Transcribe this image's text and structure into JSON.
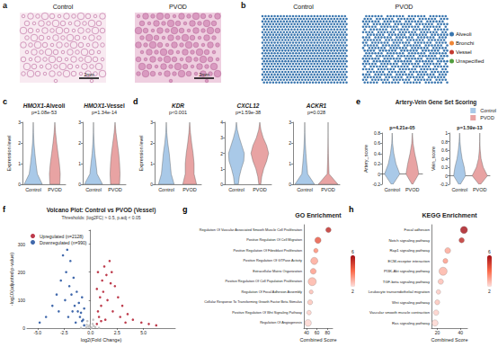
{
  "chart_data": [
    {
      "panel": "a",
      "type": "image",
      "images": [
        {
          "title": "Control",
          "scale_bar": "2mm"
        },
        {
          "title": "PVOD",
          "scale_bar": "2mm"
        }
      ]
    },
    {
      "panel": "b",
      "type": "spatial_map",
      "maps": [
        {
          "title": "Control"
        },
        {
          "title": "PVOD"
        }
      ],
      "legend": "right",
      "series": [
        {
          "name": "Alveoli",
          "color": "#3a76af"
        },
        {
          "name": "Bronchi",
          "color": "#ef8636"
        },
        {
          "name": "Vessel",
          "color": "#c43a31"
        },
        {
          "name": "Unspecified",
          "color": "#529e3e"
        }
      ]
    },
    {
      "panel": "c",
      "type": "violin",
      "grid": false,
      "categories": [
        "Control",
        "PVOD"
      ],
      "subplots": [
        {
          "title": "HMOX1-Alveoli",
          "annotation": "p=1.08e-53",
          "ylabel": "Expression level",
          "ylim": [
            0,
            3
          ],
          "yticks": [
            0,
            1,
            2,
            3
          ],
          "y": [
            0,
            0.5,
            1,
            1.5,
            2,
            2.5,
            3
          ],
          "series": [
            {
              "name": "Control",
              "color": "#a9c9e8",
              "density": [
                1,
                0.45,
                0.3,
                0.18,
                0.08,
                0.03,
                0
              ]
            },
            {
              "name": "PVOD",
              "color": "#e8a3a3",
              "density": [
                0.55,
                0.6,
                0.5,
                0.35,
                0.2,
                0.08,
                0
              ]
            }
          ]
        },
        {
          "title": "HMOX1-Vessel",
          "annotation": "p=1.34e-14",
          "ylim": [
            0,
            3
          ],
          "yticks": [
            0,
            1,
            2,
            3
          ],
          "y": [
            0,
            0.5,
            1,
            1.5,
            2,
            2.5,
            3
          ],
          "series": [
            {
              "name": "Control",
              "color": "#a9c9e8",
              "density": [
                1,
                0.4,
                0.28,
                0.15,
                0.07,
                0.02,
                0
              ]
            },
            {
              "name": "PVOD",
              "color": "#e8a3a3",
              "density": [
                0.5,
                0.55,
                0.5,
                0.4,
                0.25,
                0.1,
                0
              ]
            }
          ]
        }
      ]
    },
    {
      "panel": "d",
      "type": "violin",
      "grid": false,
      "categories": [
        "Control",
        "PVOD"
      ],
      "subplots": [
        {
          "title": "KDR",
          "annotation": "p<0.001",
          "ylabel": "Expression level",
          "ylim": [
            0,
            3
          ],
          "yticks": [
            0,
            1,
            2,
            3
          ],
          "y": [
            0,
            0.5,
            1,
            1.5,
            2,
            2.5,
            3
          ],
          "series": [
            {
              "name": "Control",
              "color": "#a9c9e8",
              "density": [
                0.8,
                0.5,
                0.4,
                0.3,
                0.15,
                0.05,
                0
              ]
            },
            {
              "name": "PVOD",
              "color": "#e8a3a3",
              "density": [
                0.7,
                0.45,
                0.45,
                0.35,
                0.2,
                0.08,
                0
              ]
            }
          ]
        },
        {
          "title": "CXCL12",
          "annotation": "p=1.59e-38",
          "ylim": [
            0,
            4
          ],
          "yticks": [
            0,
            1,
            2,
            3,
            4
          ],
          "y": [
            0,
            0.5,
            1,
            1.5,
            2,
            2.5,
            3,
            3.5,
            4
          ],
          "series": [
            {
              "name": "Control",
              "color": "#a9c9e8",
              "density": [
                0.2,
                0.3,
                0.5,
                0.75,
                0.8,
                0.55,
                0.3,
                0.1,
                0
              ]
            },
            {
              "name": "PVOD",
              "color": "#e8a3a3",
              "density": [
                0.1,
                0.2,
                0.4,
                0.7,
                0.9,
                0.7,
                0.35,
                0.12,
                0
              ]
            }
          ]
        },
        {
          "title": "ACKR1",
          "annotation": "p=0.028",
          "ylim": [
            0,
            3
          ],
          "yticks": [
            0,
            1,
            2,
            3
          ],
          "y": [
            0,
            0.5,
            1,
            1.5,
            2,
            2.5,
            3
          ],
          "series": [
            {
              "name": "Control",
              "color": "#a9c9e8",
              "density": [
                1,
                0.3,
                0.2,
                0.12,
                0.06,
                0.02,
                0
              ]
            },
            {
              "name": "PVOD",
              "color": "#e8a3a3",
              "density": [
                1,
                0.1,
                0.06,
                0.03,
                0.01,
                0,
                0
              ]
            }
          ]
        }
      ]
    },
    {
      "panel": "e",
      "type": "violin",
      "grid": false,
      "title": "Artery-Vein Gene Set Scoring",
      "legend": "upper right",
      "categories": [
        "Control",
        "PVOD"
      ],
      "subplots": [
        {
          "annotation": "p=4.21e-05",
          "ylabel": "Artery_score",
          "ylim": [
            -0.2,
            0.8
          ],
          "yticks": [
            -0.2,
            0,
            0.2,
            0.4,
            0.6,
            0.8
          ],
          "y": [
            -0.2,
            0,
            0.2,
            0.4,
            0.6,
            0.8
          ],
          "series": [
            {
              "name": "Control",
              "color": "#a9c9e8",
              "density": [
                0.1,
                0.9,
                0.45,
                0.2,
                0.05,
                0
              ]
            },
            {
              "name": "PVOD",
              "color": "#e8a3a3",
              "density": [
                0.05,
                0.75,
                0.55,
                0.28,
                0.08,
                0
              ]
            }
          ]
        },
        {
          "annotation": "p=1.59e-13",
          "ylabel": "Vein_score",
          "ylim": [
            -0.2,
            1.0
          ],
          "yticks": [
            -0.2,
            0,
            0.2,
            0.4,
            0.6,
            0.8,
            1.0
          ],
          "y": [
            -0.2,
            0,
            0.2,
            0.4,
            0.6,
            0.8,
            1.0
          ],
          "series": [
            {
              "name": "Control",
              "color": "#a9c9e8",
              "density": [
                0.1,
                0.7,
                0.55,
                0.3,
                0.15,
                0.05,
                0
              ]
            },
            {
              "name": "PVOD",
              "color": "#e8a3a3",
              "density": [
                0.1,
                0.9,
                0.4,
                0.15,
                0.05,
                0.01,
                0
              ]
            }
          ]
        }
      ]
    },
    {
      "panel": "f",
      "type": "scatter",
      "grid": false,
      "title": "Volcano Plot: Control vs PVOD (Vessel)",
      "subtitle": "Thresholds: |log2FC| > 0.5, p.adj < 0.05",
      "xlabel": "log2(Fold Change)",
      "ylabel": "-log10(adjusted p-value)",
      "xlim": [
        -6,
        8
      ],
      "xticks": [
        {
          "value": -5,
          "label": "-5.0"
        },
        -2.5,
        {
          "value": 0,
          "label": "0.0"
        },
        2.5,
        {
          "value": 5,
          "label": "5.0"
        }
      ],
      "ylim": [
        0,
        350
      ],
      "yticks": [
        0,
        100,
        200,
        300
      ],
      "legend": "upper left",
      "series": [
        {
          "name": "Upregulated (n=2128)",
          "color": "#b2182b",
          "values": [
            [
              0.6,
              15
            ],
            [
              0.8,
              40
            ],
            [
              1.0,
              80
            ],
            [
              1.2,
              130
            ],
            [
              1.5,
              190
            ],
            [
              1.8,
              240
            ],
            [
              1.3,
              220
            ],
            [
              1.1,
              170
            ],
            [
              0.9,
              110
            ],
            [
              0.7,
              60
            ],
            [
              2.0,
              200
            ],
            [
              2.3,
              150
            ],
            [
              2.6,
              110
            ],
            [
              3.0,
              80
            ],
            [
              3.5,
              50
            ],
            [
              4.0,
              30
            ],
            [
              4.8,
              20
            ],
            [
              5.5,
              15
            ],
            [
              6.2,
              10
            ],
            [
              1.6,
              100
            ],
            [
              2.1,
              60
            ],
            [
              0.6,
              140
            ],
            [
              1.4,
              30
            ],
            [
              2.8,
              40
            ],
            [
              3.3,
              20
            ],
            [
              1.9,
              160
            ],
            [
              1.0,
              25
            ],
            [
              0.7,
              200
            ]
          ]
        },
        {
          "name": "Downregulated (n=990)",
          "color": "#1f4e9c",
          "values": [
            [
              -0.6,
              10
            ],
            [
              -0.8,
              25
            ],
            [
              -1.0,
              40
            ],
            [
              -1.2,
              60
            ],
            [
              -1.5,
              80
            ],
            [
              -1.8,
              120
            ],
            [
              -2.0,
              150
            ],
            [
              -2.3,
              200
            ],
            [
              -2.6,
              260
            ],
            [
              -2.2,
              280
            ],
            [
              -1.9,
              240
            ],
            [
              -1.6,
              180
            ],
            [
              -1.3,
              130
            ],
            [
              -1.1,
              90
            ],
            [
              -0.9,
              55
            ],
            [
              -0.7,
              30
            ],
            [
              -2.8,
              170
            ],
            [
              -3.2,
              120
            ],
            [
              -3.6,
              80
            ],
            [
              -4.2,
              40
            ],
            [
              -4.8,
              20
            ],
            [
              -2.4,
              100
            ],
            [
              -1.7,
              60
            ],
            [
              -0.6,
              70
            ],
            [
              -3.0,
              60
            ],
            [
              -1.4,
              20
            ],
            [
              -0.8,
              110
            ],
            [
              -2.1,
              40
            ]
          ]
        },
        {
          "color": "#bbbbbb",
          "values": [
            [
              0.1,
              2
            ],
            [
              -0.2,
              5
            ],
            [
              0.3,
              8
            ],
            [
              -0.4,
              3
            ],
            [
              0.2,
              15
            ],
            [
              -0.1,
              10
            ],
            [
              0.45,
              4
            ],
            [
              -0.35,
              12
            ],
            [
              0,
              1
            ],
            [
              0.25,
              30
            ],
            [
              -0.3,
              25
            ],
            [
              0.8,
              1
            ],
            [
              -0.9,
              1
            ]
          ]
        }
      ]
    },
    {
      "panel": "g",
      "type": "dot",
      "grid": false,
      "title": "GO Enrichment",
      "xlabel": "Combined Score",
      "categories": [
        "Regulation Of Vascular Associated Smooth Muscle Cell Proliferation",
        "Positive Regulation Of Cell Migration",
        "Positive Regulation Of Fibroblast Proliferation",
        "Positive Regulation Of GTPase Activity",
        "Extracellular Matrix Organization",
        "Positive Regulation Of Cell Population Proliferation",
        "Regulation Of Focal Adhesion Assembly",
        "Cellular Response To Transforming Growth Factor Beta Stimulus",
        "Positive Regulation Of Wnt Signaling Pathway",
        "Regulation Of Angiogenesis"
      ],
      "values": [
        82,
        62,
        58,
        55,
        53,
        51,
        49,
        47,
        45,
        43
      ],
      "sizes": [
        8,
        10,
        6,
        12,
        9,
        14,
        5,
        7,
        6,
        11
      ],
      "color_values": [
        5.5,
        4.5,
        3.5,
        3,
        3.2,
        2.8,
        2.6,
        2.5,
        2.3,
        2.2
      ],
      "color_range": [
        2,
        6
      ],
      "xlim": [
        35,
        90
      ],
      "xticks": [
        40,
        60,
        80
      ]
    },
    {
      "panel": "h",
      "type": "dot",
      "grid": false,
      "title": "KEGG Enrichment",
      "xlabel": "Combined Score",
      "categories": [
        "Focal adhesion",
        "Notch signaling pathway",
        "Rap1 signaling pathway",
        "ECM-receptor interaction",
        "PI3K-Akt signaling pathway",
        "TGF-beta signaling pathway",
        "Leukocyte transendothelial migration",
        "Wnt signaling pathway",
        "Vascular smooth muscle contraction",
        "Ras signaling pathway"
      ],
      "values": [
        43,
        41,
        29,
        27,
        25,
        23,
        21,
        20,
        19,
        18
      ],
      "sizes": [
        12,
        8,
        9,
        7,
        14,
        8,
        6,
        7,
        8,
        10
      ],
      "color_values": [
        6,
        5.5,
        3,
        3.2,
        2.8,
        2.6,
        2.4,
        2.5,
        2.3,
        2.2
      ],
      "color_range": [
        2,
        6
      ],
      "xlim": [
        15,
        46
      ],
      "xticks": [
        20,
        40
      ]
    }
  ]
}
